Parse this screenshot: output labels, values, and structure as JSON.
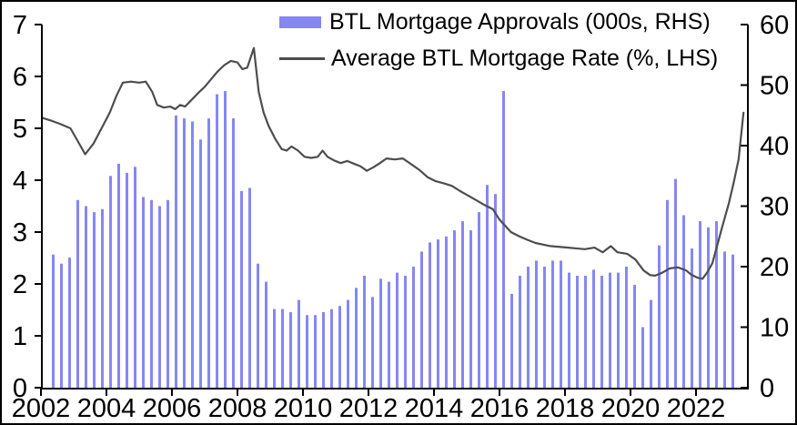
{
  "figure": {
    "background_color": "#ffffff",
    "border_color": "#000000"
  },
  "legend": {
    "position": "top-center",
    "items": [
      {
        "label": "BTL Mortgage Approvals (000s, RHS)",
        "marker": "bar-swatch",
        "color": "#8687f2"
      },
      {
        "label": "Average BTL Mortgage Rate (%, LHS)",
        "marker": "line-swatch",
        "color": "#4d4d4d"
      }
    ]
  },
  "chart_data": {
    "type": "combo-bar-line",
    "title": "",
    "grid": false,
    "legend_position": "top",
    "x_axis": {
      "tick_labels": [
        "2002",
        "2004",
        "2006",
        "2008",
        "2010",
        "2012",
        "2014",
        "2016",
        "2018",
        "2020",
        "2022"
      ],
      "tick_years": [
        2002,
        2004,
        2006,
        2008,
        2010,
        2012,
        2014,
        2016,
        2018,
        2020,
        2022
      ],
      "range_years": [
        2002.0,
        2023.6
      ]
    },
    "left_axis": {
      "used_by": "Average BTL Mortgage Rate (%)",
      "range": [
        0,
        7
      ],
      "ticks": [
        0,
        1,
        2,
        3,
        4,
        5,
        6,
        7
      ]
    },
    "right_axis": {
      "used_by": "BTL Mortgage Approvals (000s)",
      "range": [
        0,
        60
      ],
      "ticks": [
        0,
        10,
        20,
        30,
        40,
        50,
        60
      ]
    },
    "series": [
      {
        "name": "BTL Mortgage Approvals (000s, RHS)",
        "type": "bar",
        "axis": "right",
        "color": "#8687f2",
        "frequency": "quarterly",
        "quarters": [
          "2002Q2",
          "2002Q3",
          "2002Q4",
          "2003Q1",
          "2003Q2",
          "2003Q3",
          "2003Q4",
          "2004Q1",
          "2004Q2",
          "2004Q3",
          "2004Q4",
          "2005Q1",
          "2005Q2",
          "2005Q3",
          "2005Q4",
          "2006Q1",
          "2006Q2",
          "2006Q3",
          "2006Q4",
          "2007Q1",
          "2007Q2",
          "2007Q3",
          "2007Q4",
          "2008Q1",
          "2008Q2",
          "2008Q3",
          "2008Q4",
          "2009Q1",
          "2009Q2",
          "2009Q3",
          "2009Q4",
          "2010Q1",
          "2010Q2",
          "2010Q3",
          "2010Q4",
          "2011Q1",
          "2011Q2",
          "2011Q3",
          "2011Q4",
          "2012Q1",
          "2012Q2",
          "2012Q3",
          "2012Q4",
          "2013Q1",
          "2013Q2",
          "2013Q3",
          "2013Q4",
          "2014Q1",
          "2014Q2",
          "2014Q3",
          "2014Q4",
          "2015Q1",
          "2015Q2",
          "2015Q3",
          "2015Q4",
          "2016Q1",
          "2016Q2",
          "2016Q3",
          "2016Q4",
          "2017Q1",
          "2017Q2",
          "2017Q3",
          "2017Q4",
          "2018Q1",
          "2018Q2",
          "2018Q3",
          "2018Q4",
          "2019Q1",
          "2019Q2",
          "2019Q3",
          "2019Q4",
          "2020Q1",
          "2020Q2",
          "2020Q3",
          "2020Q4",
          "2021Q1",
          "2021Q2",
          "2021Q3",
          "2021Q4",
          "2022Q1",
          "2022Q2",
          "2022Q3",
          "2022Q4",
          "2023Q1"
        ],
        "values": [
          22,
          20.5,
          21.5,
          31,
          30,
          29,
          29.5,
          35,
          37,
          35.5,
          36.5,
          31.5,
          31,
          30,
          31,
          45,
          44.5,
          44,
          41,
          44.5,
          48.5,
          49,
          44.5,
          32.5,
          33,
          20.5,
          17.5,
          13,
          13,
          12.5,
          14.5,
          12,
          12,
          12.5,
          13,
          13.5,
          14.5,
          16.5,
          18.5,
          15,
          18,
          17.5,
          19,
          18.5,
          20,
          22.5,
          24,
          24.5,
          25,
          26,
          27.5,
          26,
          29,
          33.5,
          32,
          49,
          15.5,
          18.5,
          20,
          21,
          20,
          21,
          21,
          19,
          18.5,
          18.5,
          19.5,
          18.5,
          19,
          19,
          20,
          17,
          10,
          14.5,
          23.5,
          31,
          34.5,
          28.5,
          23,
          27.5,
          26.5,
          27.5,
          22.5,
          22
        ]
      },
      {
        "name": "Average BTL Mortgage Rate (%, LHS)",
        "type": "line",
        "axis": "left",
        "color": "#4d4d4d",
        "points": [
          [
            2002.05,
            5.2
          ],
          [
            2002.3,
            5.15
          ],
          [
            2002.6,
            5.08
          ],
          [
            2002.9,
            5.0
          ],
          [
            2003.1,
            4.78
          ],
          [
            2003.35,
            4.5
          ],
          [
            2003.6,
            4.7
          ],
          [
            2003.85,
            5.0
          ],
          [
            2004.1,
            5.3
          ],
          [
            2004.3,
            5.62
          ],
          [
            2004.5,
            5.88
          ],
          [
            2004.75,
            5.9
          ],
          [
            2005.0,
            5.88
          ],
          [
            2005.2,
            5.9
          ],
          [
            2005.4,
            5.7
          ],
          [
            2005.55,
            5.45
          ],
          [
            2005.75,
            5.4
          ],
          [
            2005.95,
            5.42
          ],
          [
            2006.1,
            5.37
          ],
          [
            2006.25,
            5.45
          ],
          [
            2006.4,
            5.42
          ],
          [
            2006.6,
            5.55
          ],
          [
            2006.8,
            5.68
          ],
          [
            2007.0,
            5.8
          ],
          [
            2007.2,
            5.95
          ],
          [
            2007.4,
            6.1
          ],
          [
            2007.6,
            6.22
          ],
          [
            2007.8,
            6.3
          ],
          [
            2008.0,
            6.27
          ],
          [
            2008.15,
            6.14
          ],
          [
            2008.3,
            6.17
          ],
          [
            2008.5,
            6.55
          ],
          [
            2008.65,
            5.7
          ],
          [
            2008.8,
            5.3
          ],
          [
            2008.95,
            5.05
          ],
          [
            2009.15,
            4.8
          ],
          [
            2009.35,
            4.6
          ],
          [
            2009.5,
            4.57
          ],
          [
            2009.65,
            4.65
          ],
          [
            2009.85,
            4.57
          ],
          [
            2010.05,
            4.45
          ],
          [
            2010.25,
            4.43
          ],
          [
            2010.45,
            4.45
          ],
          [
            2010.6,
            4.57
          ],
          [
            2010.75,
            4.45
          ],
          [
            2010.95,
            4.38
          ],
          [
            2011.15,
            4.33
          ],
          [
            2011.35,
            4.37
          ],
          [
            2011.55,
            4.32
          ],
          [
            2011.75,
            4.27
          ],
          [
            2011.95,
            4.18
          ],
          [
            2012.15,
            4.25
          ],
          [
            2012.35,
            4.33
          ],
          [
            2012.55,
            4.42
          ],
          [
            2012.8,
            4.4
          ],
          [
            2013.05,
            4.42
          ],
          [
            2013.3,
            4.31
          ],
          [
            2013.55,
            4.2
          ],
          [
            2013.8,
            4.06
          ],
          [
            2014.05,
            3.98
          ],
          [
            2014.3,
            3.94
          ],
          [
            2014.55,
            3.89
          ],
          [
            2014.8,
            3.79
          ],
          [
            2015.05,
            3.7
          ],
          [
            2015.3,
            3.61
          ],
          [
            2015.55,
            3.52
          ],
          [
            2015.8,
            3.44
          ],
          [
            2016.0,
            3.24
          ],
          [
            2016.35,
            3.0
          ],
          [
            2016.6,
            2.92
          ],
          [
            2016.85,
            2.85
          ],
          [
            2017.1,
            2.79
          ],
          [
            2017.55,
            2.73
          ],
          [
            2018.1,
            2.7
          ],
          [
            2018.6,
            2.67
          ],
          [
            2018.9,
            2.7
          ],
          [
            2019.15,
            2.61
          ],
          [
            2019.4,
            2.73
          ],
          [
            2019.6,
            2.61
          ],
          [
            2019.9,
            2.58
          ],
          [
            2020.15,
            2.47
          ],
          [
            2020.4,
            2.26
          ],
          [
            2020.6,
            2.17
          ],
          [
            2020.75,
            2.16
          ],
          [
            2020.95,
            2.21
          ],
          [
            2021.2,
            2.3
          ],
          [
            2021.45,
            2.32
          ],
          [
            2021.7,
            2.26
          ],
          [
            2021.85,
            2.18
          ],
          [
            2022.05,
            2.12
          ],
          [
            2022.2,
            2.1
          ],
          [
            2022.35,
            2.23
          ],
          [
            2022.5,
            2.4
          ],
          [
            2022.65,
            2.75
          ],
          [
            2022.8,
            3.1
          ],
          [
            2023.0,
            3.55
          ],
          [
            2023.15,
            3.95
          ],
          [
            2023.3,
            4.4
          ],
          [
            2023.45,
            5.3
          ]
        ]
      }
    ]
  }
}
